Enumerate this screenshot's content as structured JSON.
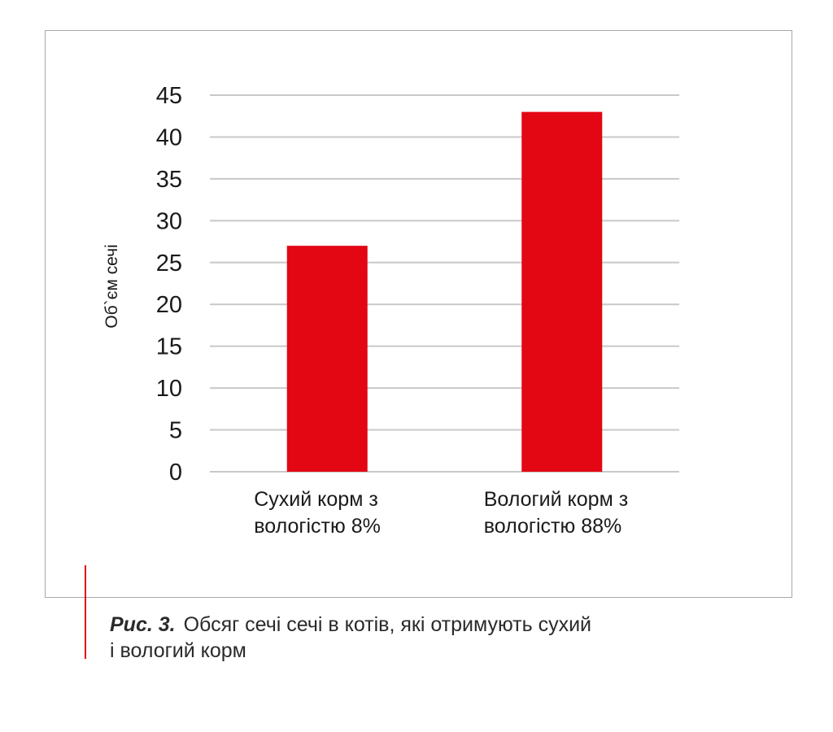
{
  "chart_data": {
    "type": "bar",
    "categories": [
      [
        "Сухий корм з",
        "вологістю 8%"
      ],
      [
        "Вологий корм з",
        "вологістю 88%"
      ]
    ],
    "values": [
      27,
      43
    ],
    "ylabel": "Об`єм сечі",
    "ylim": [
      0,
      45
    ],
    "yticks": [
      0,
      5,
      10,
      15,
      20,
      25,
      30,
      35,
      40,
      45
    ],
    "grid": true,
    "bar_color": "#e30613",
    "grid_color": "#c8c8c8"
  },
  "caption": {
    "label": "Рис. 3.",
    "line1": "Обсяг сечі сечі в котів, які отримують сухий",
    "line2": "і вологий корм"
  }
}
